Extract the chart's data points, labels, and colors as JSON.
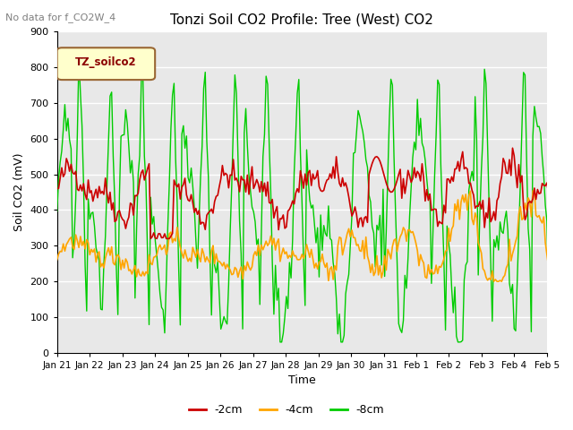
{
  "title": "Tonzi Soil CO2 Profile: Tree (West) CO2",
  "subtitle": "No data for f_CO2W_4",
  "ylabel": "Soil CO2 (mV)",
  "xlabel": "Time",
  "legend_title": "TZ_soilco2",
  "legend_labels": [
    "-2cm",
    "-4cm",
    "-8cm"
  ],
  "legend_colors": [
    "#cc0000",
    "#ffa500",
    "#00cc00"
  ],
  "ylim": [
    0,
    900
  ],
  "background_color": "#ffffff",
  "plot_bg_color": "#e8e8e8",
  "grid_color": "#ffffff",
  "tick_labels": [
    "Jan 21",
    "Jan 22",
    "Jan 23",
    "Jan 24",
    "Jan 25",
    "Jan 26",
    "Jan 27",
    "Jan 28",
    "Jan 29",
    "Jan 30",
    "Jan 31",
    "Feb 1",
    "Feb 2",
    "Feb 3",
    "Feb 4",
    "Feb 5"
  ],
  "n_points": 336,
  "seed": 42
}
